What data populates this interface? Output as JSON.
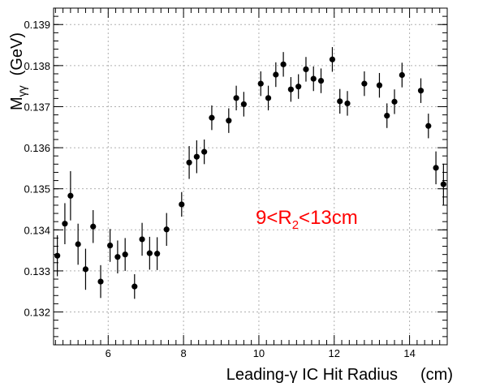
{
  "chart_data": {
    "type": "scatter",
    "xlabel": "Leading-γ IC Hit Radius",
    "xunit": "(cm)",
    "ylabel": {
      "main": "M",
      "sub": "γγ",
      "unit": "(GeV)"
    },
    "xlim": [
      4.55,
      15.0
    ],
    "ylim": [
      0.1312,
      0.1394
    ],
    "x_ticks": [
      6,
      8,
      10,
      12,
      14
    ],
    "y_ticks": [
      0.132,
      0.133,
      0.134,
      0.135,
      0.136,
      0.137,
      0.138,
      0.139
    ],
    "grid": true,
    "marker_color": "#000000",
    "annotation": {
      "before": "9<R",
      "sub": "2",
      "after": "<13cm",
      "color": "#ff0000"
    },
    "points": [
      {
        "x": 4.65,
        "y": 0.13337,
        "err": 0.0005
      },
      {
        "x": 4.85,
        "y": 0.13415,
        "err": 0.0005
      },
      {
        "x": 5.0,
        "y": 0.13483,
        "err": 0.0006
      },
      {
        "x": 5.2,
        "y": 0.13365,
        "err": 0.0005
      },
      {
        "x": 5.4,
        "y": 0.13304,
        "err": 0.0005
      },
      {
        "x": 5.6,
        "y": 0.13408,
        "err": 0.0004
      },
      {
        "x": 5.8,
        "y": 0.13274,
        "err": 0.0004
      },
      {
        "x": 6.05,
        "y": 0.13362,
        "err": 0.0004
      },
      {
        "x": 6.25,
        "y": 0.13334,
        "err": 0.0004
      },
      {
        "x": 6.45,
        "y": 0.1334,
        "err": 0.0004
      },
      {
        "x": 6.7,
        "y": 0.13262,
        "err": 0.0003
      },
      {
        "x": 6.9,
        "y": 0.13377,
        "err": 0.0004
      },
      {
        "x": 7.1,
        "y": 0.13343,
        "err": 0.0004
      },
      {
        "x": 7.3,
        "y": 0.13342,
        "err": 0.0004
      },
      {
        "x": 7.55,
        "y": 0.13401,
        "err": 0.0004
      },
      {
        "x": 7.95,
        "y": 0.13462,
        "err": 0.0003
      },
      {
        "x": 8.15,
        "y": 0.13564,
        "err": 0.0004
      },
      {
        "x": 8.35,
        "y": 0.13578,
        "err": 0.0004
      },
      {
        "x": 8.55,
        "y": 0.1359,
        "err": 0.0003
      },
      {
        "x": 8.75,
        "y": 0.13673,
        "err": 0.0003
      },
      {
        "x": 9.2,
        "y": 0.13666,
        "err": 0.0003
      },
      {
        "x": 9.4,
        "y": 0.13721,
        "err": 0.0003
      },
      {
        "x": 9.6,
        "y": 0.13706,
        "err": 0.0003
      },
      {
        "x": 10.05,
        "y": 0.13756,
        "err": 0.0003
      },
      {
        "x": 10.25,
        "y": 0.13721,
        "err": 0.0003
      },
      {
        "x": 10.45,
        "y": 0.13778,
        "err": 0.0003
      },
      {
        "x": 10.65,
        "y": 0.13803,
        "err": 0.0003
      },
      {
        "x": 10.85,
        "y": 0.13742,
        "err": 0.0003
      },
      {
        "x": 11.05,
        "y": 0.13749,
        "err": 0.0003
      },
      {
        "x": 11.25,
        "y": 0.13791,
        "err": 0.0003
      },
      {
        "x": 11.45,
        "y": 0.13768,
        "err": 0.0003
      },
      {
        "x": 11.65,
        "y": 0.13763,
        "err": 0.0003
      },
      {
        "x": 11.95,
        "y": 0.13815,
        "err": 0.0003
      },
      {
        "x": 12.15,
        "y": 0.13713,
        "err": 0.0003
      },
      {
        "x": 12.35,
        "y": 0.13708,
        "err": 0.0003
      },
      {
        "x": 12.8,
        "y": 0.13756,
        "err": 0.0003
      },
      {
        "x": 13.2,
        "y": 0.13752,
        "err": 0.0003
      },
      {
        "x": 13.4,
        "y": 0.13678,
        "err": 0.0003
      },
      {
        "x": 13.6,
        "y": 0.13712,
        "err": 0.0003
      },
      {
        "x": 13.8,
        "y": 0.13777,
        "err": 0.0003
      },
      {
        "x": 14.3,
        "y": 0.13739,
        "err": 0.0003
      },
      {
        "x": 14.5,
        "y": 0.13653,
        "err": 0.0003
      },
      {
        "x": 14.7,
        "y": 0.13551,
        "err": 0.0004
      },
      {
        "x": 14.9,
        "y": 0.13511,
        "err": 0.0005
      }
    ]
  }
}
